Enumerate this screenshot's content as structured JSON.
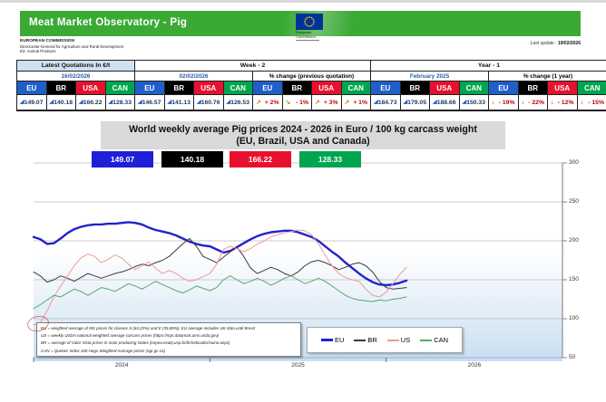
{
  "header": {
    "bar_title": "Meat Market Observatory - Pig",
    "org_lines": [
      "EUROPEAN COMMISSION",
      "Directorate-General for Agriculture and Rural Development",
      "E3. Animal Products"
    ],
    "logo_caption": "European Commission",
    "last_update_label": "Last update :",
    "last_update_date": "19/02/2026"
  },
  "colors": {
    "header_green": "#3aaa35",
    "flag_blue": "#003399",
    "star_yellow": "#ffcc00",
    "eu": "#1f5fc8",
    "br": "#000000",
    "usa": "#e8112d",
    "can": "#00a550",
    "value_navy": "#17365d",
    "pct_red": "#c00000",
    "arrow_gold": "#bf8f00",
    "arrow_red": "#e00000",
    "date_blue": "#2a5caa"
  },
  "table": {
    "latest_title": "Latest Quotations In €/t",
    "week2_title": "Week - 2",
    "year1_title": "Year - 1",
    "latest_date": "16/02/2026",
    "week2_date": "02/02/2026",
    "pct_prev_title": "% change (previous quotation)",
    "year1_date": "February 2025",
    "pct_year_title": "% change (1 year)",
    "countries": [
      "EU",
      "BR",
      "USA",
      "CAN"
    ],
    "latest_values": [
      "149.07",
      "140.18",
      "166.22",
      "128.33"
    ],
    "week2_values": [
      "146.57",
      "141.13",
      "160.76",
      "126.53"
    ],
    "pct_prev_values": [
      "+ 2%",
      "- 1%",
      "+ 3%",
      "+ 1%"
    ],
    "pct_prev_icons": [
      "↗",
      "↘",
      "↗",
      "↗"
    ],
    "year1_values": [
      "184.73",
      "179.05",
      "188.66",
      "150.33"
    ],
    "pct_year_values": [
      "- 19%",
      "- 22%",
      "- 12%",
      "- 15%"
    ],
    "pct_year_icons": [
      "↓",
      "↓",
      "↓",
      "↓"
    ],
    "trend_icon": "◢"
  },
  "chart": {
    "title_line1": "World weekly average Pig prices 2024 - 2026  in Euro / 100 kg carcass weight",
    "title_line2": "(EU, Brazil, USA and Canada)",
    "value_boxes": [
      {
        "label": "149.07",
        "color": "#1f1fd6"
      },
      {
        "label": "140.18",
        "color": "#000000"
      },
      {
        "label": "166.22",
        "color": "#e8112d"
      },
      {
        "label": "128.33",
        "color": "#00a550"
      }
    ],
    "footnotes": [
      "EU    = weighted average of MS prices for classes S (64,22%) and E (35,88%); EU average includes UK data  until Brexit",
      "US    = weekly USDA national weighted average carcass prices (https://mpr.datamart.ams.usda.gov)",
      "BR    = average of Valor Vista prices in main producing states (cepea.esalq.usp.br/br/indicador/suino.aspx)",
      "CAN = Quebec Index 100 Hogs Weighted Average prices (agr.gc.ca)"
    ]
  },
  "chart_data": {
    "type": "line",
    "title": "World weekly average Pig prices 2024 - 2026 in Euro / 100 kg carcass weight (EU, Brazil, USA and Canada)",
    "xlabel": "",
    "ylabel": "",
    "ylim": [
      50,
      300
    ],
    "yticks": [
      300,
      250,
      200,
      150,
      100,
      50
    ],
    "xticks": [
      {
        "label": "2024",
        "week": 0
      },
      {
        "label": "2025",
        "week": 52
      },
      {
        "label": "2026",
        "week": 104
      }
    ],
    "weeks_total": 156,
    "step_weeks": 2,
    "grid": true,
    "legend_position": "bottom",
    "series": [
      {
        "name": "EU",
        "color": "#2222cc",
        "width": 2.4,
        "values": [
          205,
          202,
          196,
          197,
          203,
          210,
          215,
          218,
          220,
          221,
          221,
          222,
          222,
          223,
          224,
          223,
          221,
          217,
          214,
          212,
          210,
          207,
          203,
          199,
          196,
          194,
          193,
          189,
          185,
          187,
          192,
          197,
          202,
          206,
          209,
          211,
          212,
          213,
          213,
          211,
          208,
          205,
          200,
          193,
          186,
          180,
          172,
          165,
          158,
          152,
          147,
          144,
          143,
          144,
          146,
          149
        ]
      },
      {
        "name": "BR",
        "color": "#3a3a3a",
        "width": 1,
        "values": [
          160,
          155,
          147,
          150,
          155,
          152,
          148,
          153,
          158,
          155,
          152,
          155,
          158,
          160,
          163,
          167,
          170,
          168,
          172,
          175,
          180,
          188,
          196,
          203,
          193,
          180,
          176,
          172,
          179,
          186,
          192,
          180,
          165,
          158,
          162,
          166,
          163,
          158,
          155,
          160,
          168,
          173,
          175,
          172,
          168,
          163,
          166,
          170,
          172,
          168,
          160,
          148,
          140,
          138,
          139,
          140
        ]
      },
      {
        "name": "US",
        "color": "#ee9a9a",
        "width": 1,
        "values": [
          92,
          95,
          110,
          128,
          142,
          155,
          168,
          178,
          183,
          180,
          172,
          176,
          182,
          178,
          170,
          163,
          168,
          173,
          165,
          158,
          162,
          158,
          152,
          148,
          150,
          154,
          158,
          170,
          189,
          193,
          190,
          186,
          190,
          196,
          200,
          205,
          208,
          210,
          212,
          214,
          213,
          208,
          196,
          182,
          168,
          158,
          153,
          150,
          148,
          138,
          130,
          128,
          134,
          145,
          157,
          166
        ]
      },
      {
        "name": "CAN",
        "color": "#55a86e",
        "width": 1,
        "values": [
          113,
          118,
          124,
          130,
          128,
          133,
          138,
          135,
          130,
          135,
          140,
          138,
          135,
          140,
          145,
          142,
          138,
          143,
          148,
          144,
          140,
          136,
          133,
          137,
          142,
          139,
          136,
          140,
          150,
          155,
          150,
          145,
          148,
          152,
          148,
          143,
          147,
          152,
          155,
          150,
          145,
          148,
          152,
          148,
          142,
          136,
          130,
          126,
          124,
          123,
          122,
          124,
          123,
          125,
          126,
          128
        ]
      }
    ]
  }
}
